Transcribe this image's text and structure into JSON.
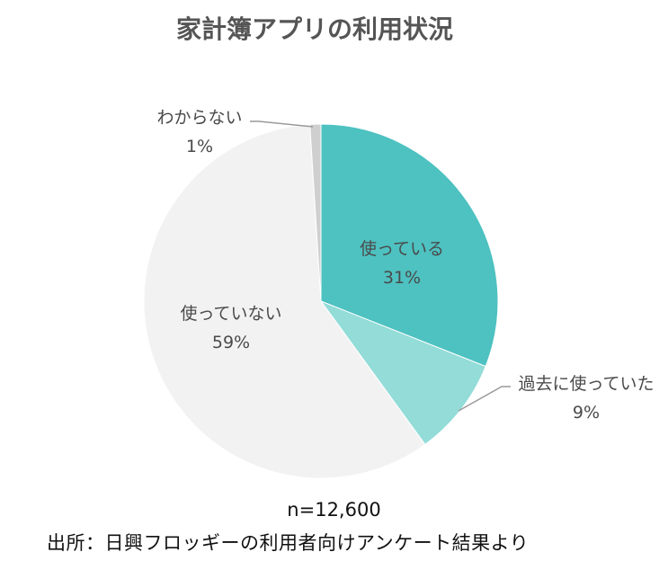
{
  "chart_data": {
    "type": "pie",
    "title": "家計簿アプリの利用状況",
    "slices": [
      {
        "label": "使っている",
        "value": 31,
        "display": "31%",
        "color": "#4ec1c1"
      },
      {
        "label": "過去に使っていた",
        "value": 9,
        "display": "9%",
        "color": "#93dcd8"
      },
      {
        "label": "使っていない",
        "value": 59,
        "display": "59%",
        "color": "#f2f2f2"
      },
      {
        "label": "わからない",
        "value": 1,
        "display": "1%",
        "color": "#cfcfcf"
      }
    ]
  },
  "sample_size": "n=12,600",
  "source": "出所：日興フロッギーの利用者向けアンケート結果より"
}
